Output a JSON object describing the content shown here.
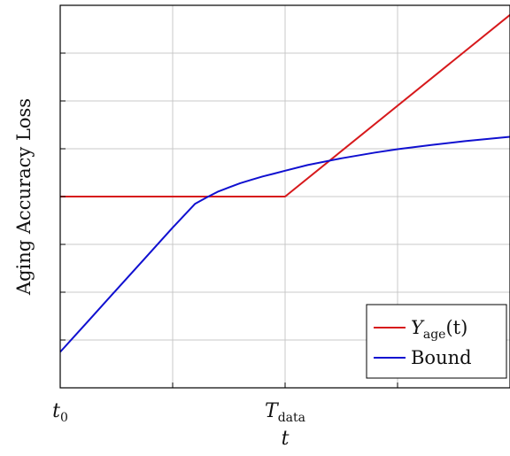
{
  "chart_data": {
    "type": "line",
    "xlabel": "t",
    "ylabel": "Aging Accuracy Loss",
    "xlim": [
      0,
      4
    ],
    "ylim": [
      0,
      8
    ],
    "grid": true,
    "legend_position": "bottom-right",
    "x_ticks": [
      0,
      1,
      2,
      3,
      4
    ],
    "y_ticks": [
      0,
      1,
      2,
      3,
      4,
      5,
      6,
      7,
      8
    ],
    "x_tick_labels": [
      {
        "x": 0,
        "base": "t",
        "sub": "0"
      },
      {
        "x": 2,
        "base": "T",
        "sub": "data"
      }
    ],
    "series": [
      {
        "name": "Y_age(t)",
        "legend": {
          "base": "Y",
          "sub": "age",
          "suffix": "(t)"
        },
        "color": "#d7191c",
        "x": [
          0,
          2,
          4
        ],
        "y": [
          4,
          4,
          7.8
        ]
      },
      {
        "name": "Bound",
        "legend": {
          "base": "Bound",
          "sub": "",
          "suffix": ""
        },
        "color": "#1010d0",
        "x": [
          0,
          0.25,
          0.5,
          0.75,
          1.0,
          1.2,
          1.3,
          1.4,
          1.5,
          1.6,
          1.7,
          1.8,
          1.9,
          2.0,
          2.2,
          2.5,
          2.8,
          3.0,
          3.3,
          3.6,
          4.0
        ],
        "y": [
          0.75,
          1.4,
          2.05,
          2.7,
          3.35,
          3.85,
          3.98,
          4.1,
          4.19,
          4.28,
          4.35,
          4.42,
          4.48,
          4.54,
          4.66,
          4.8,
          4.92,
          4.99,
          5.08,
          5.16,
          5.25
        ]
      }
    ]
  }
}
